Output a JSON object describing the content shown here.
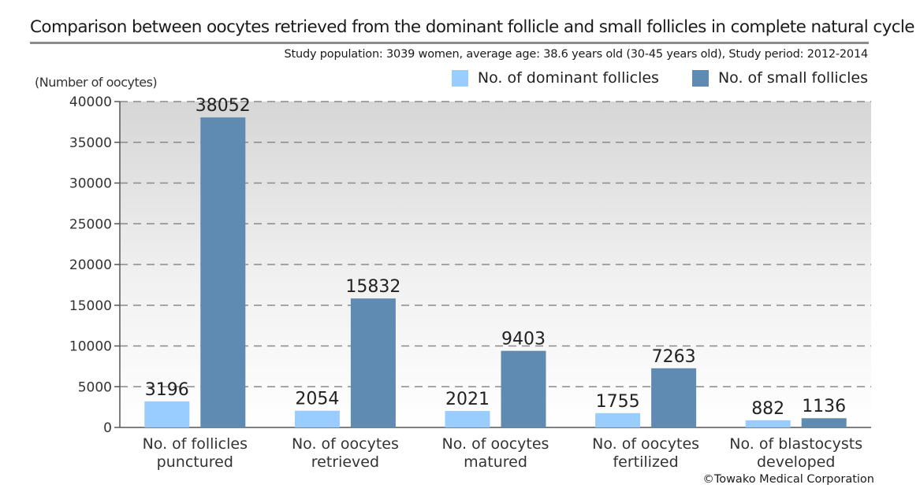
{
  "title": "Comparison between oocytes retrieved from the dominant follicle and small follicles in complete natural cycle IVF",
  "subtitle": "Study population: 3039 women, average age: 38.6 years old (30-45 years old), Study period: 2012-2014",
  "copyright": "©Towako Medical Corporation",
  "colors": {
    "dominant": "#99ccff",
    "small": "#5f8bb3",
    "grid": "#8a8a8a",
    "axis": "#555555"
  },
  "chart_data": {
    "type": "bar",
    "title": "Comparison between oocytes retrieved from the dominant follicle and small follicles in complete natural cycle IVF",
    "ylabel": "(Number of oocytes)",
    "xlabel": "",
    "ylim": [
      0,
      40000
    ],
    "yticks": [
      0,
      5000,
      10000,
      15000,
      20000,
      25000,
      30000,
      35000,
      40000
    ],
    "grid": true,
    "legend_position": "top-right",
    "categories": [
      [
        "No. of follicles",
        "punctured"
      ],
      [
        "No. of oocytes",
        "retrieved"
      ],
      [
        "No. of oocytes",
        "matured"
      ],
      [
        "No. of oocytes",
        "fertilized"
      ],
      [
        "No. of blastocysts",
        "developed"
      ]
    ],
    "series": [
      {
        "name": "No. of dominant follicles",
        "color": "#99ccff",
        "values": [
          3196,
          2054,
          2021,
          1755,
          882
        ]
      },
      {
        "name": "No. of small follicles",
        "color": "#5f8bb3",
        "values": [
          38052,
          15832,
          9403,
          7263,
          1136
        ]
      }
    ]
  }
}
